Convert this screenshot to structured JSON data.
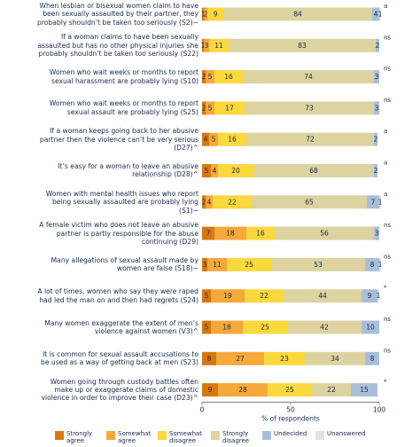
{
  "chart_data": {
    "type": "bar",
    "orientation": "horizontal",
    "stacked": true,
    "categories": [
      "When lesbian or bisexual women claim to have been sexually assaulted by their partner, they probably shouldn’t be taken too seriously (S2)~",
      "If a woman claims to have been sexually assaulted but has no other physical injuries she probably shouldn’t be taken too seriously (S22)",
      "Women who wait weeks or months to report sexual harassment are probably lying (S10)",
      "Women who wait weeks or months to report sexual assault are probably lying (S25)",
      "If a woman keeps going back to her abusive partner then the violence can’t be very serious (D27)^",
      "It’s easy for a woman to leave an abusive relationship (D28)^",
      "Women with mental health issues who report being sexually assaulted are probably lying (S1)~",
      "A female victim who does not leave an abusive partner is partly responsible for the abuse continuing (D29)",
      "Many allegations of sexual assault made by women are false (S18)~",
      "A lot of times, women who say they were raped had led the man on and then had regrets (S24)",
      "Many women exaggerate the extent of men’s violence against women (V3)^",
      "It is common for sexual assault accusations to be used as a way of getting back at men (S23)",
      "Women going through custody battles often make up or exaggerate claims of domestic violence in order to improve their case (D23)^"
    ],
    "series": [
      {
        "name": "Strongly agree",
        "color": "#d9770f",
        "values": [
          1,
          1,
          2,
          2,
          4,
          5,
          2,
          7,
          3,
          5,
          5,
          8,
          9
        ]
      },
      {
        "name": "Somewhat agree",
        "color": "#f6a83a",
        "values": [
          2,
          3,
          5,
          5,
          5,
          4,
          4,
          18,
          11,
          19,
          18,
          27,
          28
        ]
      },
      {
        "name": "Somewhat disagree",
        "color": "#fbd83c",
        "values": [
          9,
          11,
          16,
          17,
          16,
          20,
          22,
          16,
          25,
          22,
          25,
          23,
          25
        ]
      },
      {
        "name": "Strongly disagree",
        "color": "#dcd3a0",
        "values": [
          84,
          83,
          74,
          73,
          72,
          68,
          65,
          56,
          53,
          44,
          42,
          34,
          22
        ]
      },
      {
        "name": "Undecided",
        "color": "#a9bfd9",
        "values": [
          4,
          2,
          3,
          3,
          2,
          2,
          7,
          3,
          8,
          9,
          10,
          8,
          15
        ]
      },
      {
        "name": "Unanswered",
        "color": "#e2e2e2",
        "values": [
          1,
          null,
          null,
          null,
          null,
          null,
          1,
          null,
          1,
          1,
          null,
          null,
          null
        ]
      }
    ],
    "annotations": [
      "a",
      "ns",
      "ns",
      "ns",
      "a",
      "a",
      "a",
      "ns",
      "ns",
      "*",
      "ns",
      "ns",
      "*"
    ],
    "xlim": [
      0,
      100
    ],
    "xticks": [
      0,
      50,
      100
    ],
    "xlabel": "% of respondents"
  }
}
